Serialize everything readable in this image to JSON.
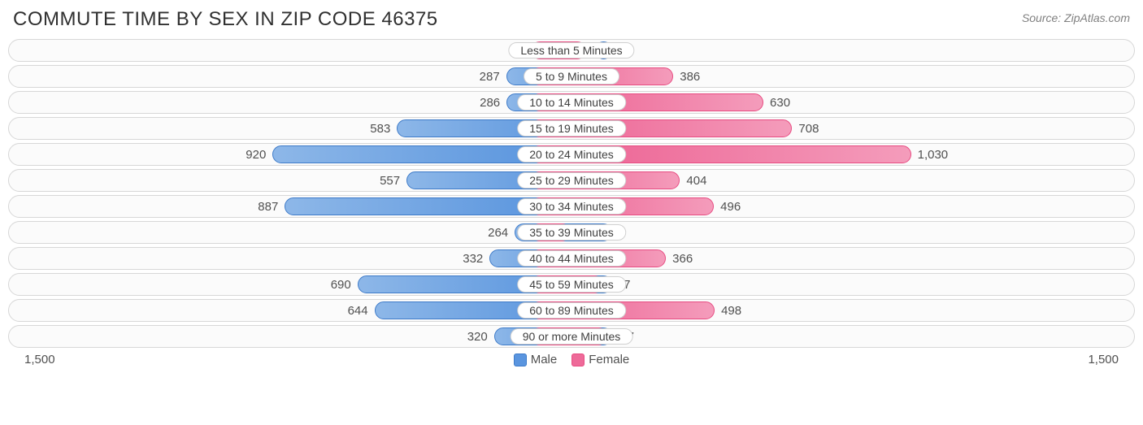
{
  "title": "Commute Time By Sex in Zip Code 46375",
  "source": "Source: ZipAtlas.com",
  "type": "diverging-bar",
  "axis_max": 1500,
  "axis_left_label": "1,500",
  "axis_right_label": "1,500",
  "colors": {
    "male_bar_start": "#8db7e8",
    "male_bar_end": "#4f8edc",
    "male_border": "#3e7bc9",
    "female_bar_start": "#ec5e90",
    "female_bar_end": "#f49cbb",
    "female_border": "#e84c82",
    "row_border": "#d7d7d7",
    "row_bg": "#fbfbfb",
    "text": "#505050",
    "title_text": "#303030",
    "background": "#ffffff"
  },
  "legend": {
    "male": "Male",
    "female": "Female"
  },
  "font": {
    "title_size_pt": 18,
    "label_size_pt": 11,
    "value_size_pt": 11
  },
  "categories": [
    {
      "label": "Less than 5 Minutes",
      "male": 46,
      "male_fmt": "46",
      "female": 150,
      "female_fmt": "150"
    },
    {
      "label": "5 to 9 Minutes",
      "male": 287,
      "male_fmt": "287",
      "female": 386,
      "female_fmt": "386"
    },
    {
      "label": "10 to 14 Minutes",
      "male": 286,
      "male_fmt": "286",
      "female": 630,
      "female_fmt": "630"
    },
    {
      "label": "15 to 19 Minutes",
      "male": 583,
      "male_fmt": "583",
      "female": 708,
      "female_fmt": "708"
    },
    {
      "label": "20 to 24 Minutes",
      "male": 920,
      "male_fmt": "920",
      "female": 1030,
      "female_fmt": "1,030"
    },
    {
      "label": "25 to 29 Minutes",
      "male": 557,
      "male_fmt": "557",
      "female": 404,
      "female_fmt": "404"
    },
    {
      "label": "30 to 34 Minutes",
      "male": 887,
      "male_fmt": "887",
      "female": 496,
      "female_fmt": "496"
    },
    {
      "label": "35 to 39 Minutes",
      "male": 264,
      "male_fmt": "264",
      "female": 108,
      "female_fmt": "108"
    },
    {
      "label": "40 to 44 Minutes",
      "male": 332,
      "male_fmt": "332",
      "female": 366,
      "female_fmt": "366"
    },
    {
      "label": "45 to 59 Minutes",
      "male": 690,
      "male_fmt": "690",
      "female": 197,
      "female_fmt": "197"
    },
    {
      "label": "60 to 89 Minutes",
      "male": 644,
      "male_fmt": "644",
      "female": 498,
      "female_fmt": "498"
    },
    {
      "label": "90 or more Minutes",
      "male": 320,
      "male_fmt": "320",
      "female": 207,
      "female_fmt": "207"
    }
  ]
}
